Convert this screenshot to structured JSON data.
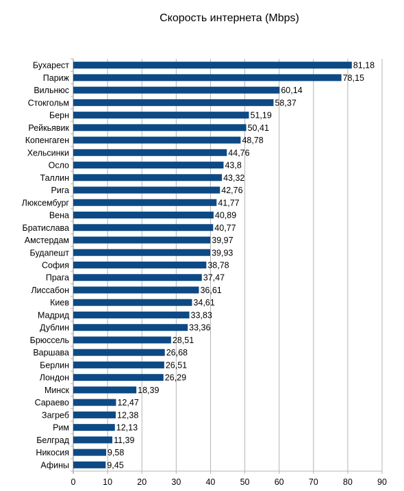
{
  "chart_data": {
    "type": "bar",
    "orientation": "horizontal",
    "title": "Скорость интернета (Mbps)",
    "xlabel": "",
    "ylabel": "",
    "xlim": [
      0,
      90
    ],
    "xticks": [
      0,
      10,
      20,
      30,
      40,
      50,
      60,
      70,
      80,
      90
    ],
    "grid": "vertical",
    "legend": "none",
    "bar_color": "#0d4a85",
    "categories": [
      "Бухарест",
      "Париж",
      "Вильнюс",
      "Стокгольм",
      "Берн",
      "Рейкьявик",
      "Копенгаген",
      "Хельсинки",
      "Осло",
      "Таллин",
      "Рига",
      "Люксембург",
      "Вена",
      "Братислава",
      "Амстердам",
      "Будапешт",
      "София",
      "Прага",
      "Лиссабон",
      "Киев",
      "Мадрид",
      "Дублин",
      "Брюссель",
      "Варшава",
      "Берлин",
      "Лондон",
      "Минск",
      "Сараево",
      "Загреб",
      "Рим",
      "Белград",
      "Никосия",
      "Афины"
    ],
    "values": [
      81.18,
      78.15,
      60.14,
      58.37,
      51.19,
      50.41,
      48.78,
      44.76,
      43.8,
      43.32,
      42.76,
      41.77,
      40.89,
      40.77,
      39.97,
      39.93,
      38.78,
      37.47,
      36.61,
      34.61,
      33.83,
      33.36,
      28.51,
      26.68,
      26.51,
      26.29,
      18.39,
      12.47,
      12.38,
      12.13,
      11.39,
      9.58,
      9.45
    ],
    "value_labels": [
      "81,18",
      "78,15",
      "60,14",
      "58,37",
      "51,19",
      "50,41",
      "48,78",
      "44,76",
      "43,8",
      "43,32",
      "42,76",
      "41,77",
      "40,89",
      "40,77",
      "39,97",
      "39,93",
      "38,78",
      "37,47",
      "36,61",
      "34,61",
      "33,83",
      "33,36",
      "28,51",
      "26,68",
      "26,51",
      "26,29",
      "18,39",
      "12,47",
      "12,38",
      "12,13",
      "11,39",
      "9,58",
      "9,45"
    ]
  }
}
